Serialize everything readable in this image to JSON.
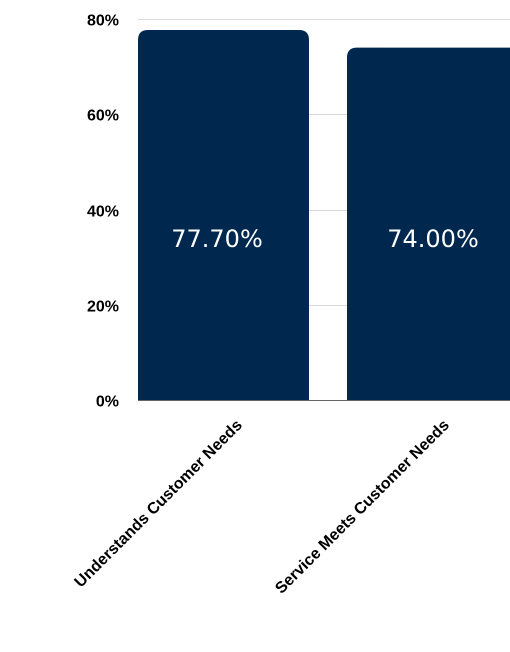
{
  "chart_data": {
    "type": "bar",
    "categories": [
      "Understands Customer Needs",
      "Service Meets Customer Needs"
    ],
    "values": [
      77.7,
      74.0
    ],
    "data_labels": [
      "77.70%",
      "74.00%"
    ],
    "y_ticks": [
      {
        "value": 0,
        "label": "0%"
      },
      {
        "value": 20,
        "label": "20%"
      },
      {
        "value": 40,
        "label": "40%"
      },
      {
        "value": 60,
        "label": "60%"
      },
      {
        "value": 80,
        "label": "80%"
      }
    ],
    "ylim": [
      0,
      80
    ],
    "grid": true,
    "legend": "none",
    "title": "",
    "xlabel": "",
    "ylabel": "",
    "colors": {
      "bar": "#00284f",
      "bar_label": "#ffffff",
      "grid": "#d9d9d9"
    }
  }
}
